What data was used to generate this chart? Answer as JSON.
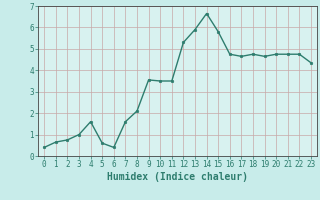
{
  "x": [
    0,
    1,
    2,
    3,
    4,
    5,
    6,
    7,
    8,
    9,
    10,
    11,
    12,
    13,
    14,
    15,
    16,
    17,
    18,
    19,
    20,
    21,
    22,
    23
  ],
  "y": [
    0.4,
    0.65,
    0.75,
    1.0,
    1.6,
    0.6,
    0.4,
    1.6,
    2.1,
    3.55,
    3.5,
    3.5,
    5.3,
    5.9,
    6.65,
    5.8,
    4.75,
    4.65,
    4.75,
    4.65,
    4.75,
    4.75,
    4.75,
    4.35
  ],
  "line_color": "#2e7d6e",
  "marker": "o",
  "marker_size": 1.8,
  "linewidth": 1.0,
  "xlabel": "Humidex (Indice chaleur)",
  "xlabel_fontsize": 7,
  "xlim": [
    -0.5,
    23.5
  ],
  "ylim": [
    0,
    7
  ],
  "yticks": [
    0,
    1,
    2,
    3,
    4,
    5,
    6,
    7
  ],
  "xticks": [
    0,
    1,
    2,
    3,
    4,
    5,
    6,
    7,
    8,
    9,
    10,
    11,
    12,
    13,
    14,
    15,
    16,
    17,
    18,
    19,
    20,
    21,
    22,
    23
  ],
  "grid_color": "#c8a8a8",
  "bg_color": "#c8ecea",
  "plot_bg_color": "#d8f2f0",
  "tick_fontsize": 5.5,
  "spine_color": "#444444"
}
